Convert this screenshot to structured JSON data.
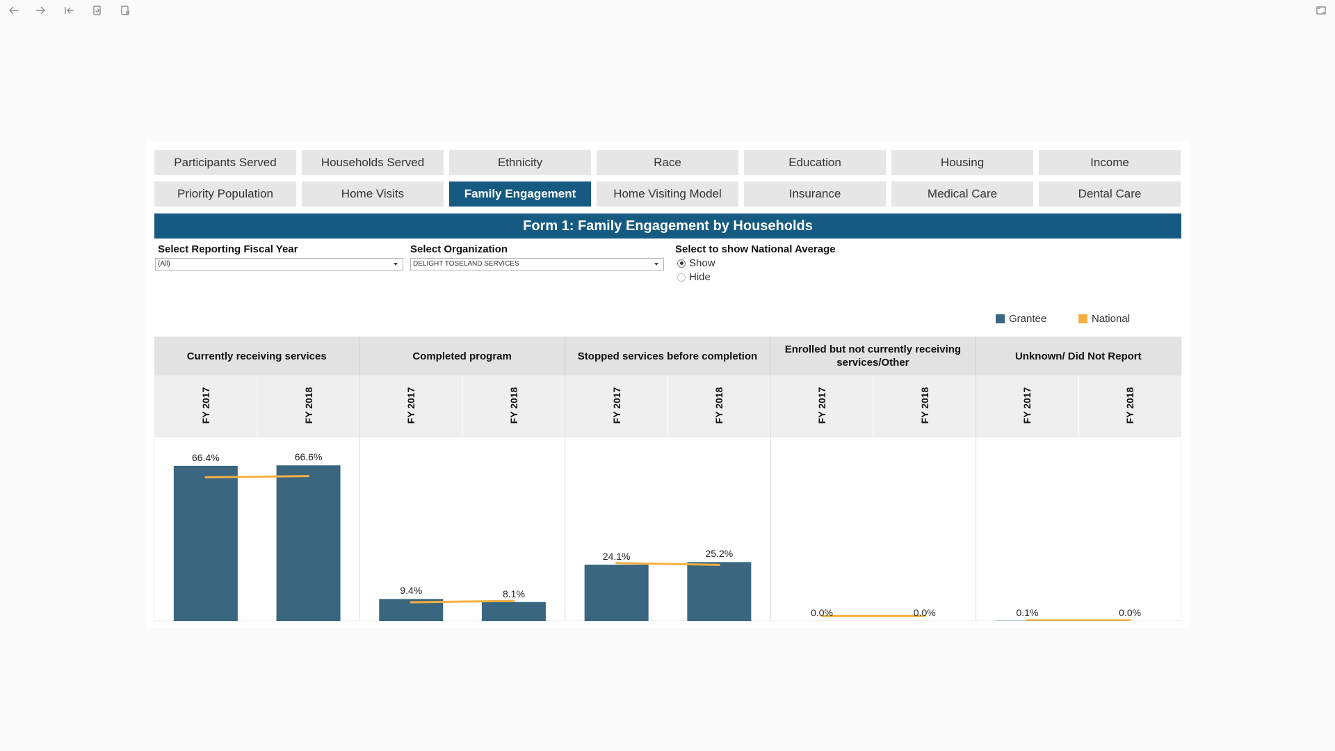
{
  "toolbar": {
    "icons": [
      "back-arrow-icon",
      "forward-arrow-icon",
      "revert-icon",
      "refresh-icon",
      "pause-icon",
      "fullscreen-icon"
    ]
  },
  "nav": {
    "row1": [
      "Participants Served",
      "Households Served",
      "Ethnicity",
      "Race",
      "Education",
      "Housing",
      "Income"
    ],
    "row2": [
      "Priority Population",
      "Home Visits",
      "Family Engagement",
      "Home Visiting Model",
      "Insurance",
      "Medical Care",
      "Dental Care"
    ],
    "active": "Family Engagement"
  },
  "banner": {
    "title": "Form 1: Family Engagement by Households"
  },
  "filters": {
    "fiscal_year": {
      "label": "Select Reporting Fiscal Year",
      "value": "(All)"
    },
    "organization": {
      "label": "Select Organization",
      "value": "DELIGHT TOSELAND SERVICES"
    },
    "national": {
      "label": "Select to show National Average",
      "options": [
        "Show",
        "Hide"
      ],
      "selected": "Show"
    }
  },
  "legend": {
    "grantee": {
      "label": "Grantee",
      "color": "#3b6680"
    },
    "national": {
      "label": "National",
      "color": "#f5b041"
    }
  },
  "chart_data": {
    "type": "bar",
    "categories": [
      "Currently receiving services",
      "Completed program",
      "Stopped services before completion",
      "Enrolled but not currently receiving services/Other",
      "Unknown/ Did Not Report"
    ],
    "subcategories": [
      "FY 2017",
      "FY 2018"
    ],
    "series": [
      {
        "name": "Grantee",
        "values": [
          [
            66.4,
            66.6
          ],
          [
            9.4,
            8.1
          ],
          [
            24.1,
            25.2
          ],
          [
            0.0,
            0.0
          ],
          [
            0.1,
            0.0
          ]
        ],
        "labels": [
          [
            "66.4%",
            "66.6%"
          ],
          [
            "9.4%",
            "8.1%"
          ],
          [
            "24.1%",
            "25.2%"
          ],
          [
            "0.0%",
            "0.0%"
          ],
          [
            "0.1%",
            "0.0%"
          ]
        ]
      },
      {
        "name": "National",
        "values": [
          [
            61.5,
            62.0
          ],
          [
            8.0,
            8.6
          ],
          [
            24.8,
            24.0
          ],
          [
            2.2,
            2.2
          ],
          [
            0.3,
            0.3
          ]
        ]
      }
    ],
    "ylim": [
      0,
      75
    ],
    "grid": false
  }
}
